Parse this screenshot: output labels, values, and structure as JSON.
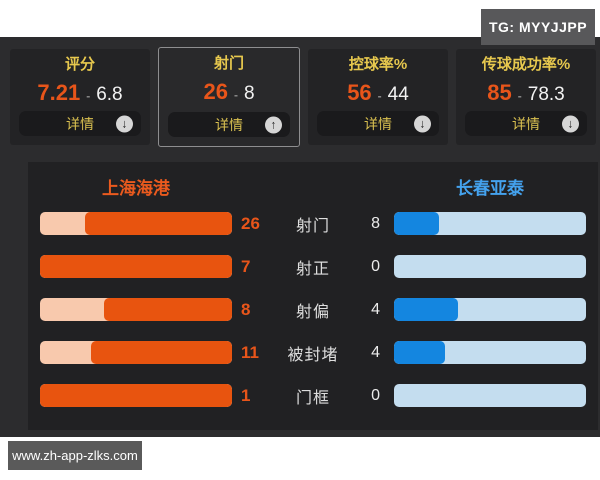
{
  "badge": {
    "text": "TG: MYYJJPP"
  },
  "watermark": {
    "text": "www.zh-app-zlks.com"
  },
  "separator": "-",
  "stat_cards": [
    {
      "title": "评分",
      "home": "7.21",
      "away": "6.8",
      "button_label": "详情",
      "arrow": "down",
      "selected": false
    },
    {
      "title": "射门",
      "home": "26",
      "away": "8",
      "button_label": "详情",
      "arrow": "up",
      "selected": true
    },
    {
      "title": "控球率%",
      "home": "56",
      "away": "44",
      "button_label": "详情",
      "arrow": "down",
      "selected": false
    },
    {
      "title": "传球成功率%",
      "home": "85",
      "away": "78.3",
      "button_label": "详情",
      "arrow": "down",
      "selected": false
    }
  ],
  "panel": {
    "home_team": "上海海港",
    "away_team": "长春亚泰",
    "rows": [
      {
        "label": "射门",
        "home": 26,
        "away": 8
      },
      {
        "label": "射正",
        "home": 7,
        "away": 0
      },
      {
        "label": "射偏",
        "home": 8,
        "away": 4
      },
      {
        "label": "被封堵",
        "home": 11,
        "away": 4
      },
      {
        "label": "门框",
        "home": 1,
        "away": 0
      }
    ]
  },
  "colors": {
    "home_accent": "#e8551a",
    "home_bar_fill": "#e8540f",
    "home_bar_track": "#f8c9ad",
    "away_accent": "#44a2ee",
    "away_bar_fill": "#1486e0",
    "away_bar_track": "#c4ddef",
    "title_yellow": "#e7c84e",
    "dark_background": "#2c2c2e",
    "panel_background": "#212123",
    "badge_gray": "#58585a"
  }
}
